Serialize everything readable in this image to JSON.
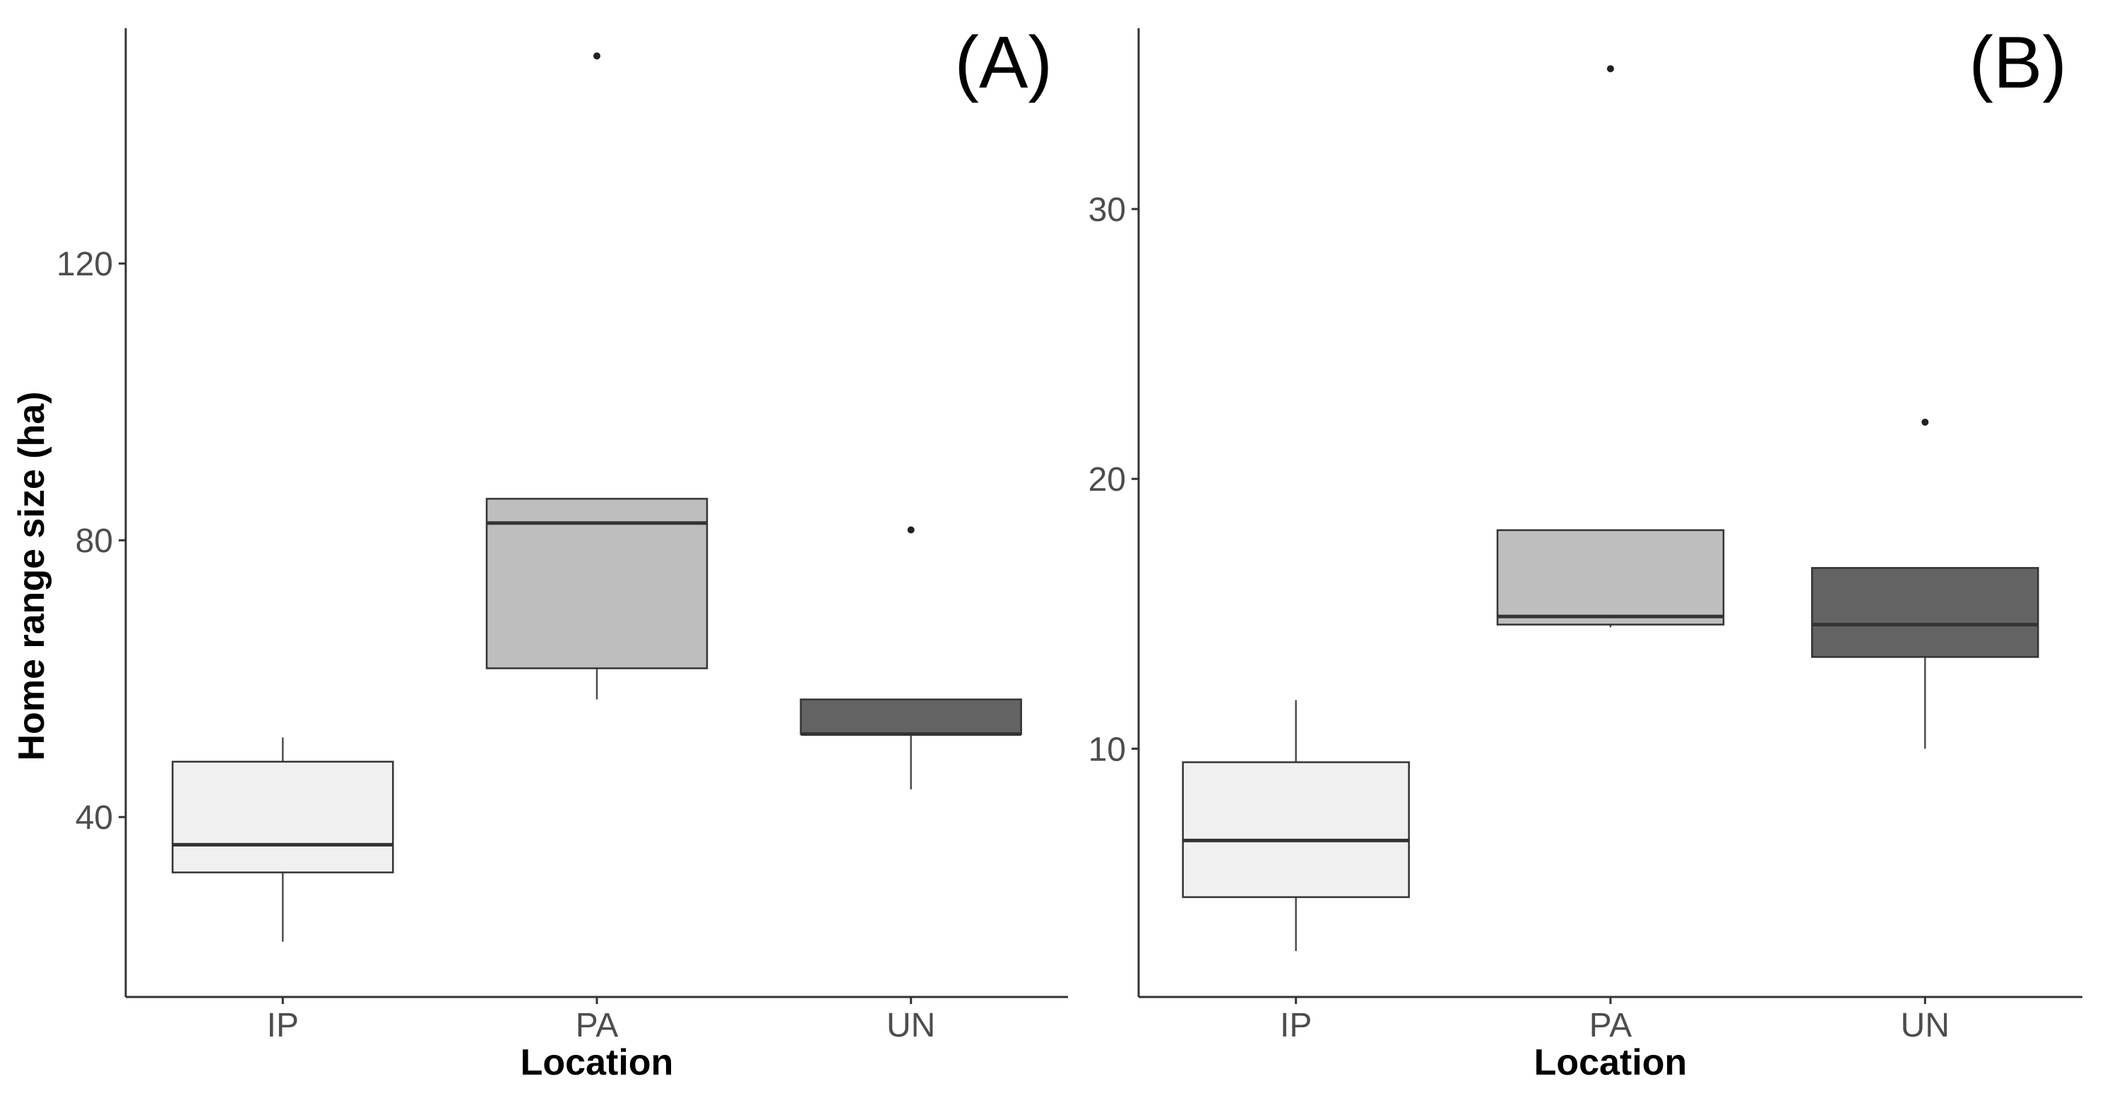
{
  "chart_data": [
    {
      "type": "box",
      "panel_label": "(A)",
      "categories": [
        "IP",
        "PA",
        "UN"
      ],
      "xlabel": "Location",
      "ylabel": "Home range size (ha)",
      "ylim": [
        14,
        154
      ],
      "yticks": [
        40,
        80,
        120
      ],
      "ytick_labels": [
        "40",
        "80",
        "120"
      ],
      "grid": false,
      "boxes": [
        {
          "category": "IP",
          "whisker_low": 22,
          "q1": 32,
          "median": 36,
          "q3": 48,
          "whisker_high": 51.5,
          "outliers": [],
          "fill": "#f0f0f0"
        },
        {
          "category": "PA",
          "whisker_low": 57,
          "q1": 61.5,
          "median": 82.5,
          "q3": 86,
          "whisker_high": 86,
          "outliers": [
            150
          ],
          "fill": "#bebebe"
        },
        {
          "category": "UN",
          "whisker_low": 44,
          "q1": 52,
          "median": 52,
          "q3": 57,
          "whisker_high": 57,
          "outliers": [
            81.5
          ],
          "fill": "#636363"
        }
      ]
    },
    {
      "type": "box",
      "panel_label": "(B)",
      "categories": [
        "IP",
        "PA",
        "UN"
      ],
      "xlabel": "Location",
      "ylabel": "",
      "ylim": [
        0.8,
        36.7
      ],
      "yticks": [
        10,
        20,
        30
      ],
      "ytick_labels": [
        "10",
        "20",
        "30"
      ],
      "grid": false,
      "boxes": [
        {
          "category": "IP",
          "whisker_low": 2.5,
          "q1": 4.5,
          "median": 6.6,
          "q3": 9.5,
          "whisker_high": 11.8,
          "outliers": [],
          "fill": "#f0f0f0"
        },
        {
          "category": "PA",
          "whisker_low": 14.5,
          "q1": 14.6,
          "median": 14.9,
          "q3": 18.1,
          "whisker_high": 18.1,
          "outliers": [
            35.2
          ],
          "fill": "#bebebe"
        },
        {
          "category": "UN",
          "whisker_low": 10.0,
          "q1": 13.4,
          "median": 14.6,
          "q3": 16.7,
          "whisker_high": 16.7,
          "outliers": [
            22.1
          ],
          "fill": "#636363"
        }
      ]
    }
  ]
}
